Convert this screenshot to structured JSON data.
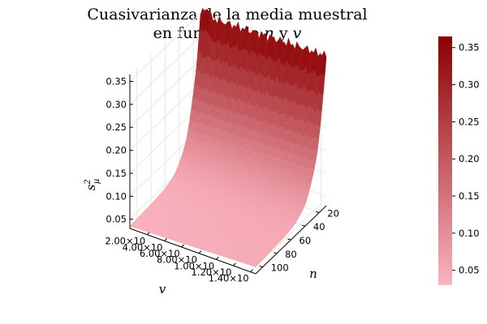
{
  "chart_data": {
    "type": "surface",
    "title_line1": "Cuasivarianza de la media muestral",
    "title_line2_prefix": "en función de ",
    "title_line2_n": "n",
    "title_line2_mid": " y ",
    "title_line2_v": "v",
    "xlabel": "v",
    "ylabel": "n",
    "zlabel": "s",
    "zlabel_sup": "2",
    "zlabel_sub": "μ",
    "v_ticks": [
      "2.00×10",
      "4.00×10",
      "6.00×10",
      "8.00×10",
      "1.00×10",
      "1.20×10",
      "1.40×10"
    ],
    "n_ticks": [
      20,
      40,
      60,
      80,
      100
    ],
    "n_range": [
      10,
      110
    ],
    "z_ticks": [
      "0.05",
      "0.10",
      "0.15",
      "0.20",
      "0.25",
      "0.30",
      "0.35"
    ],
    "zlim": [
      0.03,
      0.365
    ],
    "colorbar_ticks": [
      "0.05",
      "0.10",
      "0.15",
      "0.20",
      "0.25",
      "0.30",
      "0.35"
    ],
    "colorbar_range": [
      0.03,
      0.365
    ],
    "colors": {
      "low": "#fbb4c0",
      "high": "#8b0000"
    },
    "grid": true,
    "legend": "none"
  }
}
